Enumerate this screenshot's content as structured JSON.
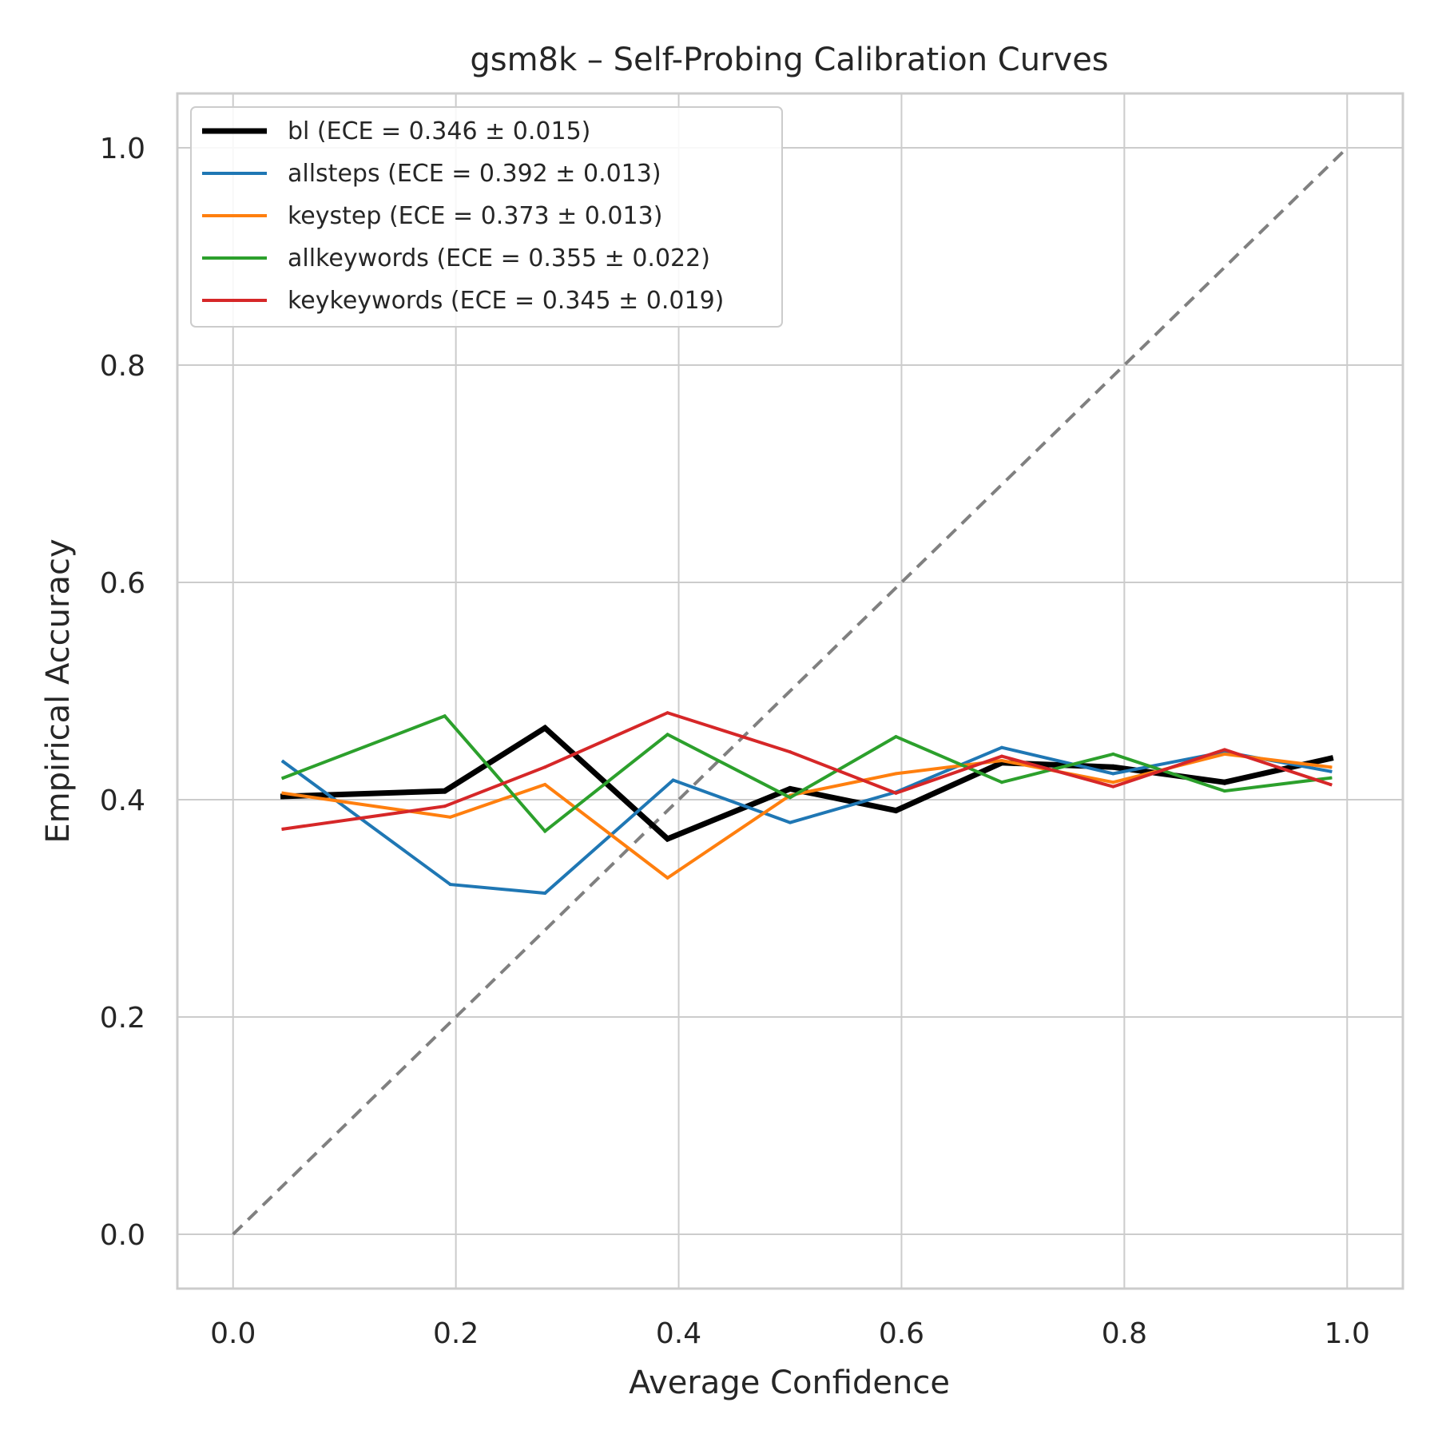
{
  "chart_data": {
    "type": "line",
    "title": "gsm8k – Self-Probing Calibration Curves",
    "xlabel": "Average Confidence",
    "ylabel": "Empirical Accuracy",
    "xlim": [
      -0.05,
      1.05
    ],
    "ylim": [
      -0.05,
      1.05
    ],
    "xticks": [
      0.0,
      0.2,
      0.4,
      0.6,
      0.8,
      1.0
    ],
    "yticks": [
      0.0,
      0.2,
      0.4,
      0.6,
      0.8,
      1.0
    ],
    "tick_labels": [
      "0.0",
      "0.2",
      "0.4",
      "0.6",
      "0.8",
      "1.0"
    ],
    "grid": true,
    "legend_position": "top-left",
    "reference_line": {
      "x": [
        0,
        1
      ],
      "y": [
        0,
        1
      ],
      "color": "#808080",
      "style": "dashed"
    },
    "series": [
      {
        "name": "bl (ECE = 0.346 ± 0.015)",
        "color": "#000000",
        "width": 7,
        "x": [
          0.045,
          0.19,
          0.28,
          0.39,
          0.5,
          0.595,
          0.69,
          0.79,
          0.89,
          0.985
        ],
        "y": [
          0.403,
          0.408,
          0.466,
          0.364,
          0.41,
          0.39,
          0.434,
          0.43,
          0.416,
          0.438
        ]
      },
      {
        "name": "allsteps (ECE = 0.392 ± 0.013)",
        "color": "#1f77b4",
        "width": 4,
        "x": [
          0.045,
          0.195,
          0.28,
          0.395,
          0.5,
          0.595,
          0.69,
          0.79,
          0.89,
          0.985
        ],
        "y": [
          0.435,
          0.322,
          0.314,
          0.418,
          0.379,
          0.407,
          0.448,
          0.424,
          0.444,
          0.426
        ]
      },
      {
        "name": "keystep (ECE = 0.373 ± 0.013)",
        "color": "#ff7f0e",
        "width": 4,
        "x": [
          0.045,
          0.195,
          0.28,
          0.39,
          0.5,
          0.595,
          0.69,
          0.79,
          0.89,
          0.985
        ],
        "y": [
          0.406,
          0.384,
          0.414,
          0.328,
          0.404,
          0.424,
          0.436,
          0.416,
          0.442,
          0.43
        ]
      },
      {
        "name": "allkeywords (ECE = 0.355 ± 0.022)",
        "color": "#2ca02c",
        "width": 4,
        "x": [
          0.045,
          0.19,
          0.28,
          0.39,
          0.5,
          0.595,
          0.69,
          0.79,
          0.89,
          0.985
        ],
        "y": [
          0.42,
          0.477,
          0.371,
          0.46,
          0.402,
          0.458,
          0.416,
          0.442,
          0.408,
          0.42
        ]
      },
      {
        "name": "keykeywords (ECE = 0.345 ± 0.019)",
        "color": "#d62728",
        "width": 4,
        "x": [
          0.045,
          0.19,
          0.28,
          0.39,
          0.5,
          0.595,
          0.69,
          0.79,
          0.89,
          0.985
        ],
        "y": [
          0.373,
          0.394,
          0.43,
          0.48,
          0.444,
          0.406,
          0.44,
          0.412,
          0.446,
          0.414
        ]
      }
    ]
  }
}
